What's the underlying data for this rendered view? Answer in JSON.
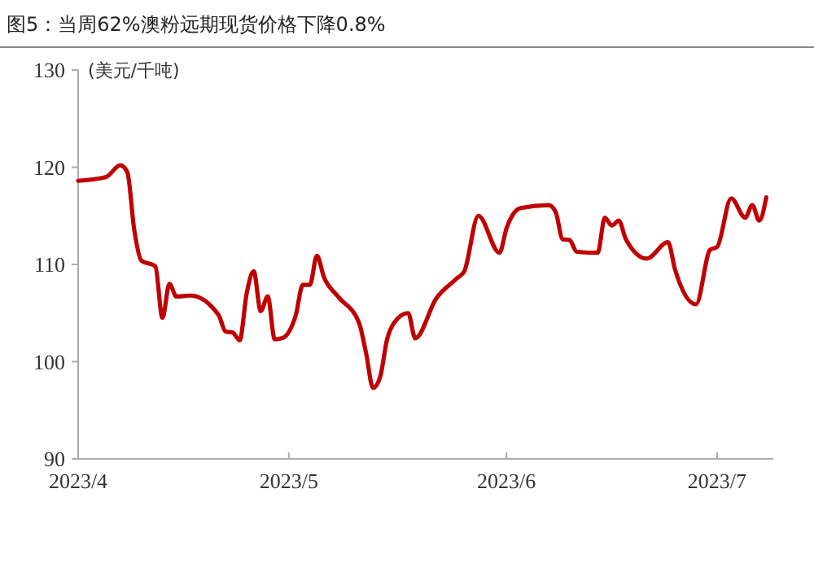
{
  "chart_data": {
    "type": "line",
    "title": "图5：当周62%澳粉远期现货价格下降0.8%",
    "ylabel": "(美元/千吨)",
    "x": [
      "2023-04-01",
      "2023-04-05",
      "2023-04-07",
      "2023-04-08",
      "2023-04-09",
      "2023-04-10",
      "2023-04-12",
      "2023-04-13",
      "2023-04-14",
      "2023-04-15",
      "2023-04-17",
      "2023-04-21",
      "2023-04-22",
      "2023-04-23",
      "2023-04-24",
      "2023-04-25",
      "2023-04-26",
      "2023-04-27",
      "2023-04-28",
      "2023-04-29",
      "2023-04-30",
      "2023-05-02",
      "2023-05-03",
      "2023-05-04",
      "2023-05-05",
      "2023-05-06",
      "2023-05-08",
      "2023-05-11",
      "2023-05-12",
      "2023-05-13",
      "2023-05-14",
      "2023-05-15",
      "2023-05-16",
      "2023-05-18",
      "2023-05-19",
      "2023-05-22",
      "2023-05-25",
      "2023-05-26",
      "2023-05-28",
      "2023-05-31",
      "2023-06-01",
      "2023-06-03",
      "2023-06-07",
      "2023-06-08",
      "2023-06-09",
      "2023-06-10",
      "2023-06-11",
      "2023-06-14",
      "2023-06-15",
      "2023-06-16",
      "2023-06-17",
      "2023-06-18",
      "2023-06-21",
      "2023-06-24",
      "2023-06-25",
      "2023-06-28",
      "2023-06-30",
      "2023-07-01",
      "2023-07-03",
      "2023-07-05",
      "2023-07-06",
      "2023-07-07",
      "2023-07-08"
    ],
    "series": [
      {
        "color": "#c00000",
        "values": [
          118.6,
          119.0,
          120.2,
          119.5,
          113.5,
          110.4,
          109.8,
          104.5,
          108.0,
          106.7,
          106.8,
          104.8,
          103.1,
          103.0,
          102.2,
          107.0,
          109.3,
          105.2,
          106.7,
          102.3,
          102.4,
          104.8,
          107.9,
          107.9,
          110.9,
          108.7,
          106.7,
          104.0,
          100.9,
          97.3,
          98.4,
          102.3,
          104.0,
          105.0,
          102.4,
          106.5,
          108.6,
          109.3,
          115.0,
          111.2,
          113.7,
          115.8,
          116.1,
          115.4,
          112.6,
          112.5,
          111.3,
          111.2,
          114.8,
          114.0,
          114.5,
          112.6,
          110.6,
          112.3,
          109.5,
          105.9,
          111.5,
          111.8,
          116.8,
          114.8,
          116.1,
          114.5,
          116.9
        ]
      }
    ],
    "xlim": [
      "2023-04-01",
      "2023-07-09"
    ],
    "xticks": [
      {
        "value": "2023-04-01",
        "label": "2023/4"
      },
      {
        "value": "2023-05-01",
        "label": "2023/5"
      },
      {
        "value": "2023-06-01",
        "label": "2023/6"
      },
      {
        "value": "2023-07-01",
        "label": "2023/7"
      }
    ],
    "ylim": [
      90,
      130
    ],
    "yticks": [
      90,
      100,
      110,
      120,
      130
    ],
    "grid": false,
    "marker": "none",
    "line_style": "solid"
  }
}
